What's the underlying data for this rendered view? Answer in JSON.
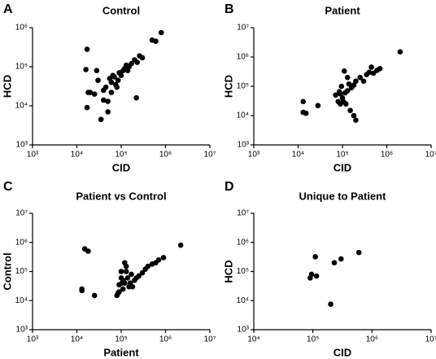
{
  "chart_data": [
    {
      "type": "scatter",
      "panel_label": "A",
      "title": "Control",
      "x_label": "CID",
      "y_label": "HCD",
      "xscale": "log",
      "yscale": "log",
      "color": "#000000",
      "xlim": [
        1000,
        10000000
      ],
      "ylim": [
        1000,
        1000000
      ],
      "xticks": [
        {
          "value": 1000,
          "label": "10³"
        },
        {
          "value": 10000,
          "label": "10⁴"
        },
        {
          "value": 100000,
          "label": "10⁵"
        },
        {
          "value": 1000000,
          "label": "10⁶"
        },
        {
          "value": 10000000,
          "label": "10⁷"
        }
      ],
      "yticks": [
        {
          "value": 1000,
          "label": "10³"
        },
        {
          "value": 10000,
          "label": "10⁴"
        },
        {
          "value": 100000,
          "label": "10⁵"
        },
        {
          "value": 1000000,
          "label": "10⁶"
        }
      ],
      "x": [
        17000,
        16000,
        18000,
        20000,
        17000,
        30000,
        35000,
        28000,
        40000,
        45000,
        50000,
        50000,
        55000,
        60000,
        65000,
        70000,
        75000,
        80000,
        85000,
        90000,
        100000,
        110000,
        120000,
        130000,
        140000,
        150000,
        170000,
        200000,
        220000,
        230000,
        260000,
        300000,
        500000,
        600000,
        800000,
        25000,
        60000,
        40000
      ],
      "values": [
        280000,
        85000,
        22000,
        22000,
        9000,
        45000,
        4500,
        80000,
        25000,
        30000,
        13000,
        7000,
        50000,
        40000,
        60000,
        55000,
        35000,
        30000,
        45000,
        70000,
        60000,
        80000,
        90000,
        110000,
        80000,
        100000,
        120000,
        150000,
        16000,
        130000,
        190000,
        170000,
        480000,
        450000,
        750000,
        20000,
        22000,
        14000
      ]
    },
    {
      "type": "scatter",
      "panel_label": "B",
      "title": "Patient",
      "x_label": "CID",
      "y_label": "HCD",
      "xscale": "log",
      "yscale": "log",
      "color": "#000000",
      "xlim": [
        1000,
        10000000
      ],
      "ylim": [
        1000,
        10000000
      ],
      "xticks": [
        {
          "value": 1000,
          "label": "10³"
        },
        {
          "value": 10000,
          "label": "10⁴"
        },
        {
          "value": 100000,
          "label": "10⁵"
        },
        {
          "value": 1000000,
          "label": "10⁶"
        },
        {
          "value": 10000000,
          "label": "10⁷"
        }
      ],
      "yticks": [
        {
          "value": 1000,
          "label": "10³"
        },
        {
          "value": 10000,
          "label": "10⁴"
        },
        {
          "value": 100000,
          "label": "10⁵"
        },
        {
          "value": 1000000,
          "label": "10⁶"
        },
        {
          "value": 10000000,
          "label": "10⁷"
        }
      ],
      "x": [
        13000,
        13000,
        15000,
        28000,
        70000,
        80000,
        85000,
        90000,
        95000,
        100000,
        105000,
        110000,
        115000,
        120000,
        130000,
        140000,
        150000,
        180000,
        200000,
        160000,
        180000,
        200000,
        250000,
        300000,
        350000,
        400000,
        450000,
        500000,
        600000,
        700000,
        2000000,
        130000,
        90000
      ],
      "values": [
        30000,
        13000,
        12000,
        22000,
        50000,
        30000,
        65000,
        25000,
        100000,
        40000,
        30000,
        330000,
        60000,
        25000,
        70000,
        120000,
        15000,
        10000,
        7000,
        90000,
        110000,
        150000,
        200000,
        150000,
        250000,
        300000,
        450000,
        280000,
        350000,
        400000,
        1500000,
        200000,
        55000
      ]
    },
    {
      "type": "scatter",
      "panel_label": "C",
      "title": "Patient vs Control",
      "x_label": "Patient",
      "y_label": "Control",
      "xscale": "log",
      "yscale": "log",
      "color": "#000000",
      "xlim": [
        1000,
        10000000
      ],
      "ylim": [
        1000,
        10000000
      ],
      "xticks": [
        {
          "value": 1000,
          "label": "10³"
        },
        {
          "value": 10000,
          "label": "10⁴"
        },
        {
          "value": 100000,
          "label": "10⁵"
        },
        {
          "value": 1000000,
          "label": "10⁶"
        },
        {
          "value": 10000000,
          "label": "10⁷"
        }
      ],
      "yticks": [
        {
          "value": 1000,
          "label": "10³"
        },
        {
          "value": 10000,
          "label": "10⁴"
        },
        {
          "value": 100000,
          "label": "10⁵"
        },
        {
          "value": 1000000,
          "label": "10⁶"
        },
        {
          "value": 10000000,
          "label": "10⁷"
        }
      ],
      "x": [
        13000,
        13000,
        15000,
        18000,
        25000,
        80000,
        90000,
        100000,
        105000,
        110000,
        120000,
        130000,
        140000,
        150000,
        160000,
        170000,
        200000,
        220000,
        250000,
        300000,
        350000,
        400000,
        500000,
        600000,
        700000,
        900000,
        2200000,
        90000,
        100000,
        120000,
        85000,
        110000,
        130000,
        180000
      ],
      "values": [
        25000,
        22000,
        600000,
        500000,
        15000,
        15000,
        20000,
        100000,
        40000,
        50000,
        200000,
        150000,
        60000,
        30000,
        40000,
        80000,
        50000,
        60000,
        70000,
        90000,
        120000,
        150000,
        180000,
        200000,
        250000,
        300000,
        800000,
        35000,
        60000,
        40000,
        18000,
        25000,
        100000,
        30000
      ]
    },
    {
      "type": "scatter",
      "panel_label": "D",
      "title": "Unique to Patient",
      "x_label": "CID",
      "y_label": "HCD",
      "xscale": "log",
      "yscale": "log",
      "color": "#000000",
      "xlim": [
        10000,
        10000000
      ],
      "ylim": [
        1000,
        10000000
      ],
      "xticks": [
        {
          "value": 10000,
          "label": "10⁴"
        },
        {
          "value": 100000,
          "label": "10⁵"
        },
        {
          "value": 1000000,
          "label": "10⁶"
        },
        {
          "value": 10000000,
          "label": "10⁷"
        }
      ],
      "yticks": [
        {
          "value": 1000,
          "label": "10³"
        },
        {
          "value": 10000,
          "label": "10⁴"
        },
        {
          "value": 100000,
          "label": "10⁵"
        },
        {
          "value": 1000000,
          "label": "10⁶"
        },
        {
          "value": 10000000,
          "label": "10⁷"
        }
      ],
      "x": [
        90000,
        95000,
        110000,
        115000,
        200000,
        230000,
        300000,
        600000
      ],
      "values": [
        60000,
        80000,
        320000,
        70000,
        7500,
        200000,
        270000,
        450000
      ]
    }
  ]
}
